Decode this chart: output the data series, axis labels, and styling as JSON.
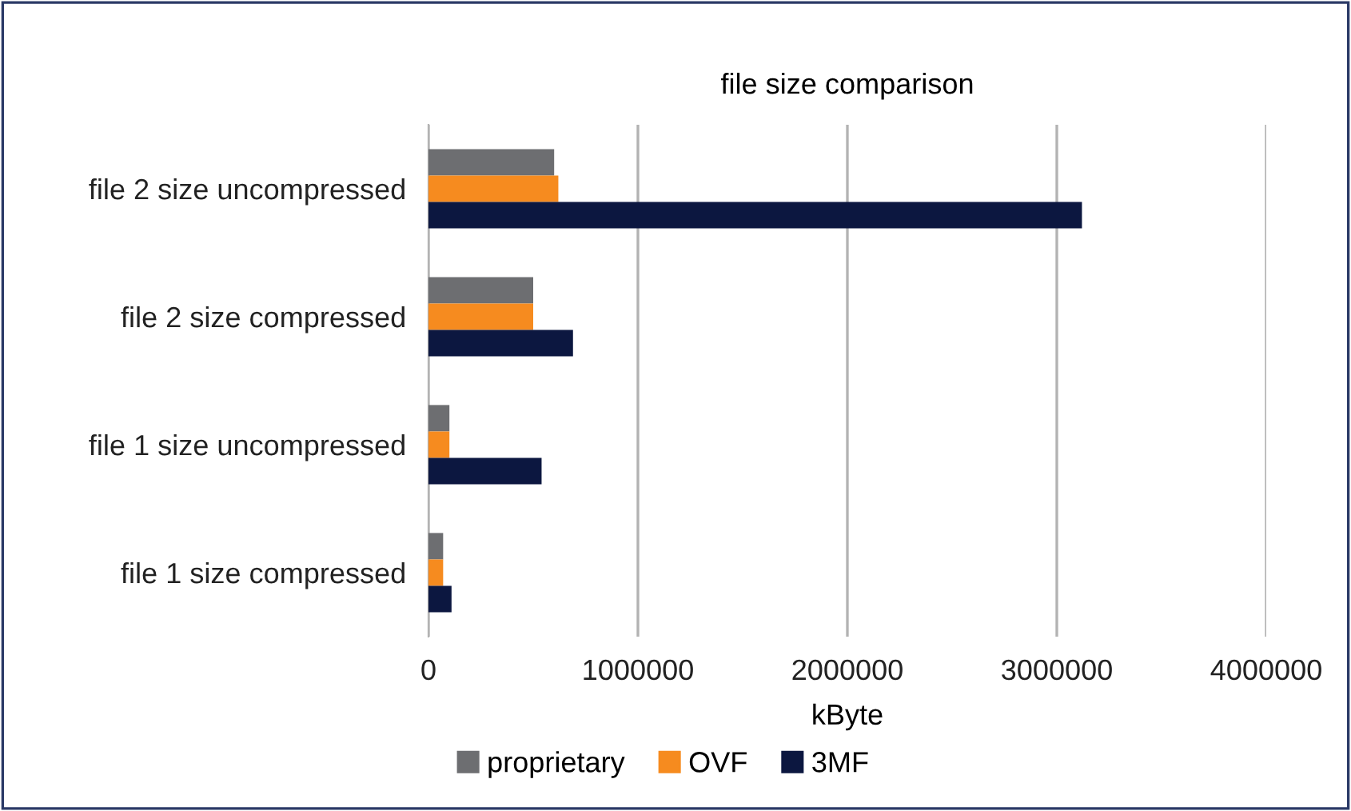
{
  "chart_data": {
    "type": "bar",
    "orientation": "horizontal",
    "title": "file size comparison",
    "xlabel": "kByte",
    "categories": [
      "file 2 size uncompressed",
      "file 2 size compressed",
      "file 1 size uncompressed",
      "file 1 size compressed"
    ],
    "series": [
      {
        "name": "proprietary",
        "color": "#6d6e71",
        "values": [
          600000,
          500000,
          100000,
          70000
        ]
      },
      {
        "name": "OVF",
        "color": "#f68b1f",
        "values": [
          620000,
          500000,
          100000,
          70000
        ]
      },
      {
        "name": "3MF",
        "color": "#0c1740",
        "values": [
          3120000,
          690000,
          540000,
          110000
        ]
      }
    ],
    "xlim": [
      0,
      4000000
    ],
    "xticks": [
      0,
      1000000,
      2000000,
      3000000,
      4000000
    ],
    "grid": "x",
    "legend": "bottom"
  }
}
